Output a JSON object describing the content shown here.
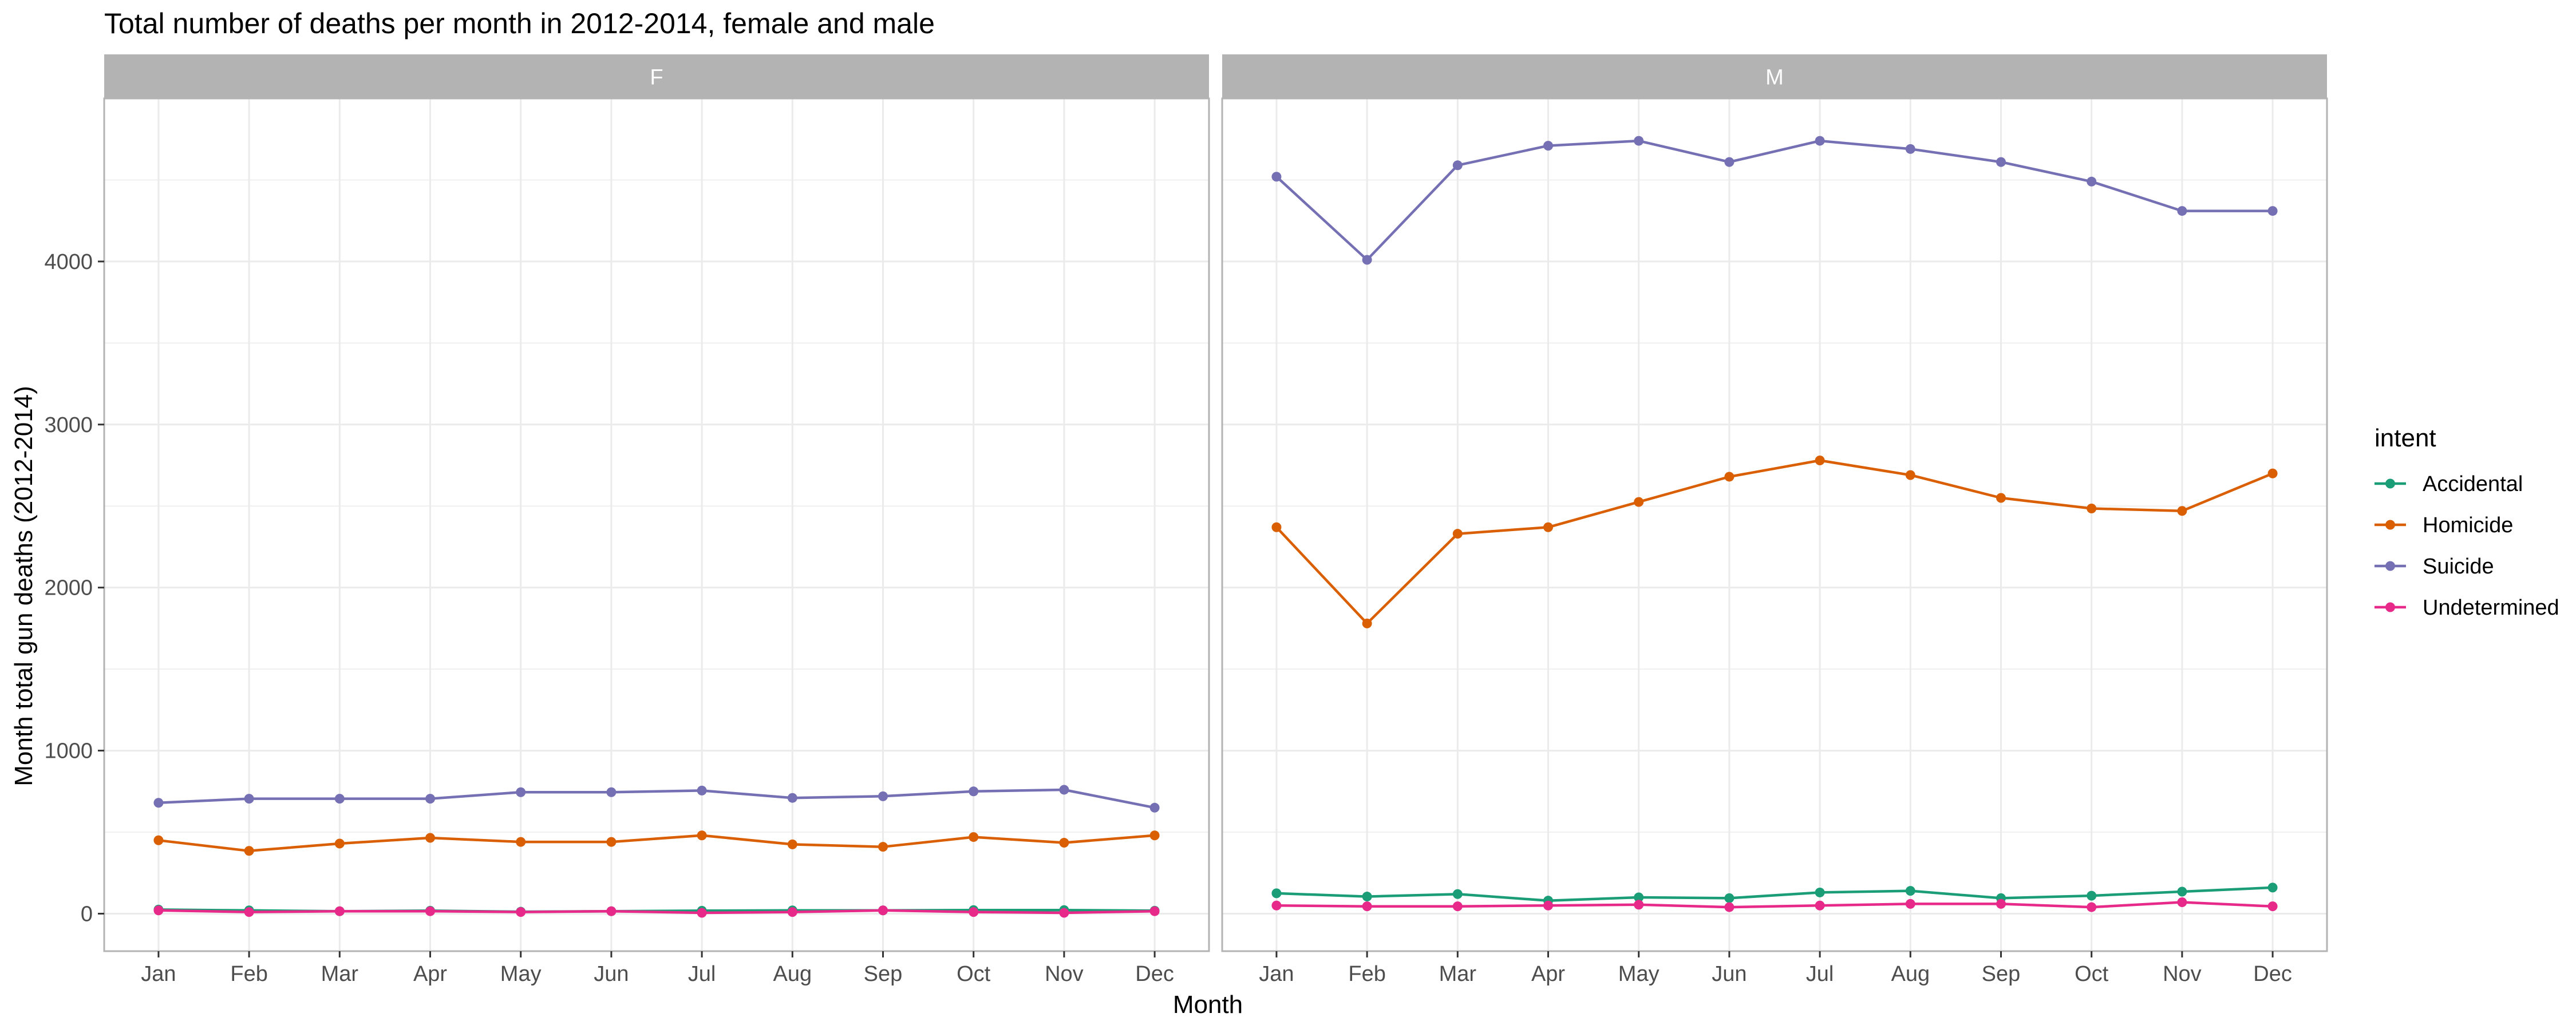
{
  "chart_data": {
    "type": "line",
    "title": "Total number of deaths per month in 2012-2014, female and male",
    "xlabel": "Month",
    "ylabel": "Month total gun deaths (2012-2014)",
    "ylim": [
      -230,
      5000
    ],
    "yticks": [
      0,
      1000,
      2000,
      3000,
      4000
    ],
    "grid": true,
    "legend_placement": "right",
    "legend_title": "intent",
    "categories": [
      "Jan",
      "Feb",
      "Mar",
      "Apr",
      "May",
      "Jun",
      "Jul",
      "Aug",
      "Sep",
      "Oct",
      "Nov",
      "Dec"
    ],
    "colors": {
      "Accidental": "#1b9e77",
      "Homicide": "#d95f02",
      "Suicide": "#7570b3",
      "Undetermined": "#e7298a",
      "strip": "#b3b3b3",
      "grid": "#ebebeb",
      "panel_border": "#b3b3b3"
    },
    "legend": [
      "Accidental",
      "Homicide",
      "Suicide",
      "Undetermined"
    ],
    "facets": [
      {
        "label": "F",
        "series": [
          {
            "name": "Accidental",
            "values": [
              25,
              20,
              15,
              18,
              12,
              15,
              18,
              20,
              20,
              22,
              22,
              18
            ]
          },
          {
            "name": "Homicide",
            "values": [
              450,
              385,
              430,
              465,
              440,
              440,
              480,
              425,
              410,
              470,
              435,
              480
            ]
          },
          {
            "name": "Suicide",
            "values": [
              680,
              705,
              705,
              705,
              745,
              745,
              755,
              710,
              720,
              750,
              760,
              650
            ]
          },
          {
            "name": "Undetermined",
            "values": [
              20,
              10,
              15,
              15,
              10,
              15,
              5,
              10,
              20,
              10,
              5,
              15
            ]
          }
        ]
      },
      {
        "label": "M",
        "series": [
          {
            "name": "Accidental",
            "values": [
              125,
              105,
              120,
              80,
              100,
              95,
              130,
              140,
              95,
              110,
              135,
              160
            ]
          },
          {
            "name": "Homicide",
            "values": [
              2370,
              1780,
              2330,
              2370,
              2525,
              2680,
              2780,
              2690,
              2550,
              2485,
              2470,
              2700
            ]
          },
          {
            "name": "Suicide",
            "values": [
              4520,
              4010,
              4590,
              4710,
              4740,
              4610,
              4740,
              4690,
              4610,
              4490,
              4310,
              4310
            ]
          },
          {
            "name": "Undetermined",
            "values": [
              50,
              45,
              45,
              50,
              55,
              40,
              50,
              60,
              60,
              40,
              70,
              45
            ]
          }
        ]
      }
    ]
  }
}
